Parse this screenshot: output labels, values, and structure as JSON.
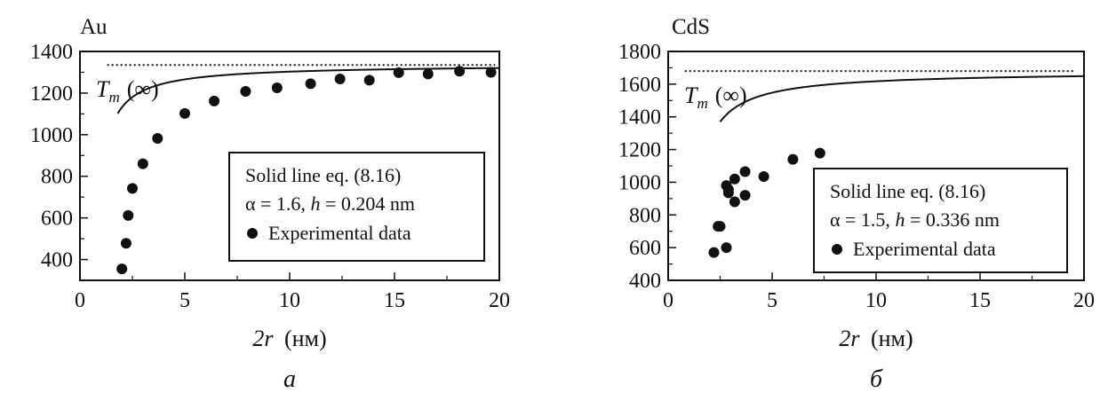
{
  "chart_data": [
    {
      "type": "scatter",
      "title": "Au",
      "xlabel_var": "2r",
      "xlabel_unit": "(нм)",
      "ylabel": "",
      "xlim": [
        0,
        20
      ],
      "ylim": [
        300,
        1400
      ],
      "xticks": [
        0,
        5,
        10,
        15,
        20
      ],
      "yticks": [
        400,
        600,
        800,
        1000,
        1200,
        1400
      ],
      "grid": false,
      "limit_line": {
        "label_main": "T",
        "label_sub": "m",
        "label_tail": "(∞)",
        "y": 1335,
        "x_from": 1.3,
        "x_to": 19.8,
        "style": "dotted"
      },
      "series": [
        {
          "kind": "points",
          "legend": "Experimental data",
          "x": [
            2.0,
            2.2,
            2.3,
            2.5,
            3.0,
            3.7,
            5.0,
            6.4,
            7.9,
            9.4,
            11.0,
            12.4,
            13.8,
            15.2,
            16.6,
            18.1,
            19.6
          ],
          "y": [
            355,
            478,
            612,
            742,
            860,
            982,
            1102,
            1162,
            1208,
            1225,
            1245,
            1268,
            1262,
            1298,
            1292,
            1305,
            1300
          ]
        },
        {
          "kind": "line",
          "legend_line1": "Solid line eq. (8.16)",
          "legend_line2_alpha": "α = 1.6, ",
          "legend_line2_h": "h",
          "legend_line2_tail": " = 0.204 nm",
          "model": "Tm_inf*(1-(alpha-1)/(r/h - 1))",
          "Tm_inf": 1337,
          "alpha": 1.6,
          "h": 0.204,
          "x_from": 1.8,
          "x_to": 20
        }
      ],
      "panel_label": "a"
    },
    {
      "type": "scatter",
      "title": "CdS",
      "xlabel_var": "2r",
      "xlabel_unit": "(нм)",
      "ylabel": "",
      "xlim": [
        0,
        20
      ],
      "ylim": [
        400,
        1800
      ],
      "xticks": [
        0,
        5,
        10,
        15,
        20
      ],
      "yticks": [
        400,
        600,
        800,
        1000,
        1200,
        1400,
        1600,
        1800
      ],
      "grid": false,
      "limit_line": {
        "label_main": "T",
        "label_sub": "m",
        "label_tail": "(∞)",
        "y": 1680,
        "x_from": 0.8,
        "x_to": 19.5,
        "style": "dotted"
      },
      "series": [
        {
          "kind": "points",
          "legend": "Experimental data",
          "x": [
            2.2,
            2.4,
            2.5,
            2.8,
            2.8,
            2.9,
            2.9,
            3.2,
            3.2,
            3.7,
            3.7,
            4.6,
            6.0,
            7.3
          ],
          "y": [
            570,
            730,
            730,
            600,
            980,
            935,
            955,
            880,
            1020,
            920,
            1065,
            1035,
            1140,
            1178
          ]
        },
        {
          "kind": "line",
          "legend_line1": "Solid line eq. (8.16)",
          "legend_line2_alpha": "α = 1.5, ",
          "legend_line2_h": "h",
          "legend_line2_tail": " = 0.336 nm",
          "model": "Tm_inf*(1-(alpha-1)/(r/h - 1))",
          "Tm_inf": 1678,
          "alpha": 1.5,
          "h": 0.336,
          "x_from": 2.5,
          "x_to": 20
        }
      ],
      "panel_label": "б"
    }
  ]
}
